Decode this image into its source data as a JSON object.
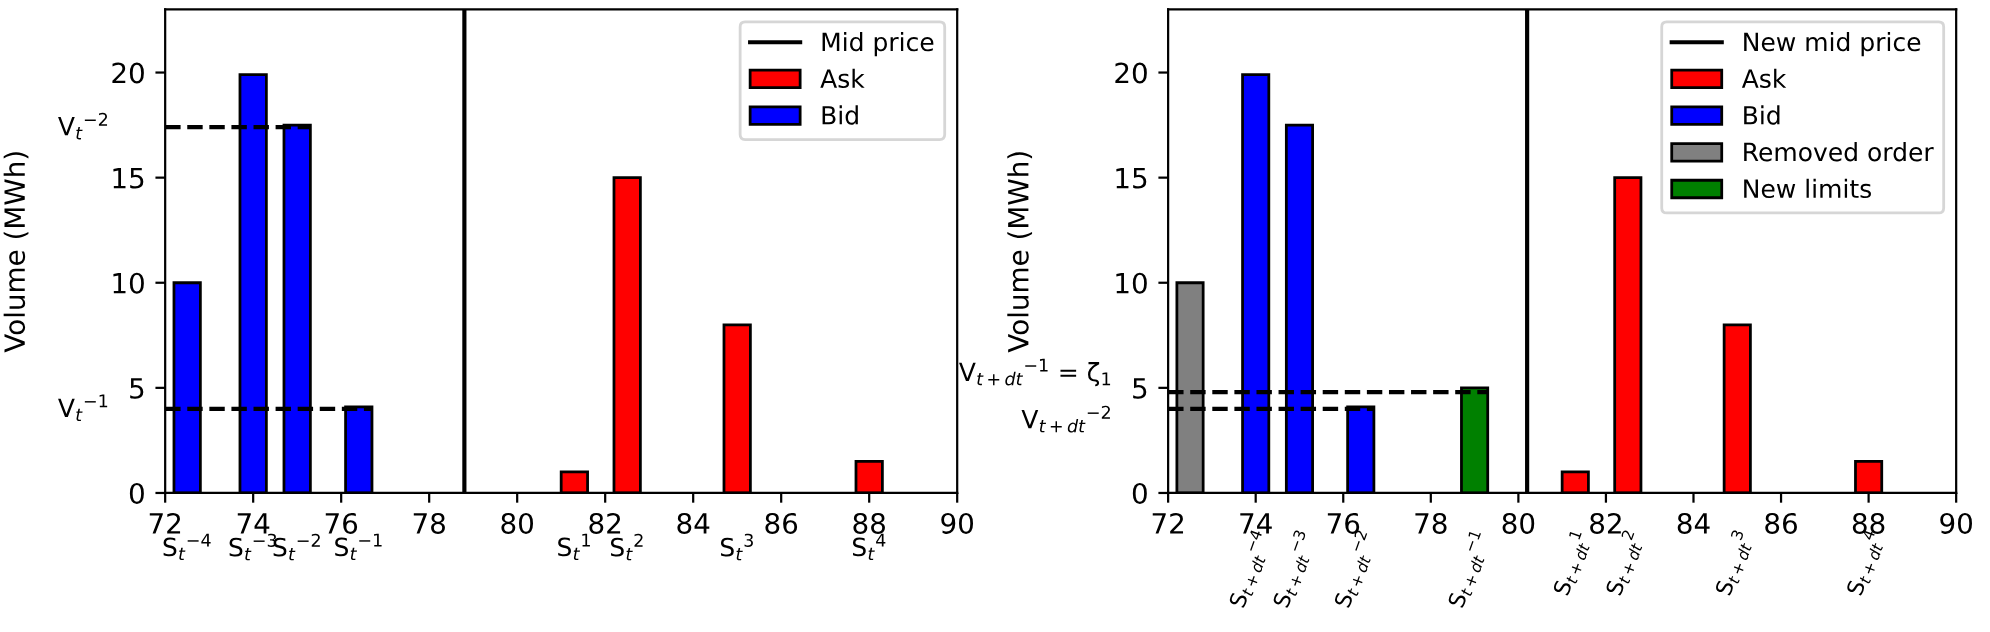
{
  "chart_data": [
    {
      "type": "bar",
      "ylabel": "Volume (MWh)",
      "xlim": [
        72,
        90
      ],
      "xticks": [
        72,
        74,
        76,
        78,
        80,
        82,
        84,
        86,
        88,
        90
      ],
      "ylim": [
        0,
        23
      ],
      "yticks": [
        0,
        5,
        10,
        15,
        20
      ],
      "legend": "top right",
      "grid": false,
      "series": [
        {
          "name": "Ask",
          "color": "#ff0000",
          "x": [
            81.3,
            82.5,
            85.0,
            88.0
          ],
          "values": [
            1.0,
            15.0,
            8.0,
            1.5
          ]
        },
        {
          "name": "Bid",
          "color": "#0000ff",
          "x": [
            72.5,
            74.0,
            75.0,
            76.4
          ],
          "values": [
            10.0,
            19.9,
            17.5,
            4.1
          ]
        },
        {
          "type": "line",
          "name": "Mid price",
          "color": "#000000",
          "x": [
            78.8,
            78.8
          ],
          "values": [
            0,
            23
          ]
        },
        {
          "type": "line",
          "color": "#000000",
          "line_style": "dashed",
          "x": [
            72,
            75.3
          ],
          "values": [
            17.4,
            17.4
          ]
        },
        {
          "type": "line",
          "color": "#000000",
          "line_style": "dashed",
          "x": [
            72,
            76.7
          ],
          "values": [
            4.0,
            4.0
          ]
        }
      ],
      "annotations": [
        "V$_{t}$$^{−2}$",
        "V$_{t}$$^{−1}$",
        "S$_{t}$$^{−4}$",
        "S$_{t}$$^{−3}$",
        "S$_{t}$$^{−2}$",
        "S$_{t}$$^{−1}$",
        "S$_{t}$$^{1}$",
        "S$_{t}$$^{2}$",
        "S$_{t}$$^{3}$",
        "S$_{t}$$^{4}$"
      ]
    },
    {
      "type": "bar",
      "ylabel": "Volume (MWh)",
      "xlim": [
        72,
        90
      ],
      "xticks": [
        72,
        74,
        76,
        78,
        80,
        82,
        84,
        86,
        88,
        90
      ],
      "ylim": [
        0,
        23
      ],
      "yticks": [
        0,
        5,
        10,
        15,
        20
      ],
      "legend": "top right",
      "grid": false,
      "series": [
        {
          "name": "Ask",
          "color": "#ff0000",
          "x": [
            81.3,
            82.5,
            85.0,
            88.0
          ],
          "values": [
            1.0,
            15.0,
            8.0,
            1.5
          ]
        },
        {
          "name": "Bid",
          "color": "#0000ff",
          "x": [
            74.0,
            75.0,
            76.4
          ],
          "values": [
            19.9,
            17.5,
            4.1
          ]
        },
        {
          "name": "Removed order",
          "color": "#808080",
          "x": [
            72.5
          ],
          "values": [
            10.0
          ]
        },
        {
          "name": "New limits",
          "color": "#008000",
          "x": [
            79.0
          ],
          "values": [
            5.0
          ]
        },
        {
          "type": "line",
          "name": "New mid price",
          "color": "#000000",
          "x": [
            80.2,
            80.2
          ],
          "values": [
            0,
            23
          ]
        },
        {
          "type": "line",
          "color": "#000000",
          "line_style": "dashed",
          "x": [
            72,
            79.3
          ],
          "values": [
            4.8,
            4.8
          ]
        },
        {
          "type": "line",
          "color": "#000000",
          "line_style": "dashed",
          "x": [
            72,
            76.7
          ],
          "values": [
            4.0,
            4.0
          ]
        }
      ],
      "annotations": [
        "V$_{t+dt}$$^{−1}$ = ζ$_{1}$",
        "V$_{t+dt}$$^{−2}$",
        "S$_{t+dt}$$^{−4}$",
        "S$_{t+dt}$$^{−3}$",
        "S$_{t+dt}$$^{−2}$",
        "S$_{t+dt}$$^{−1}$",
        "S$_{t+dt}$$^{1}$",
        "S$_{t+dt}$$^{2}$",
        "S$_{t+dt}$$^{3}$",
        "S$_{t+dt}$$^{4}$"
      ]
    }
  ]
}
